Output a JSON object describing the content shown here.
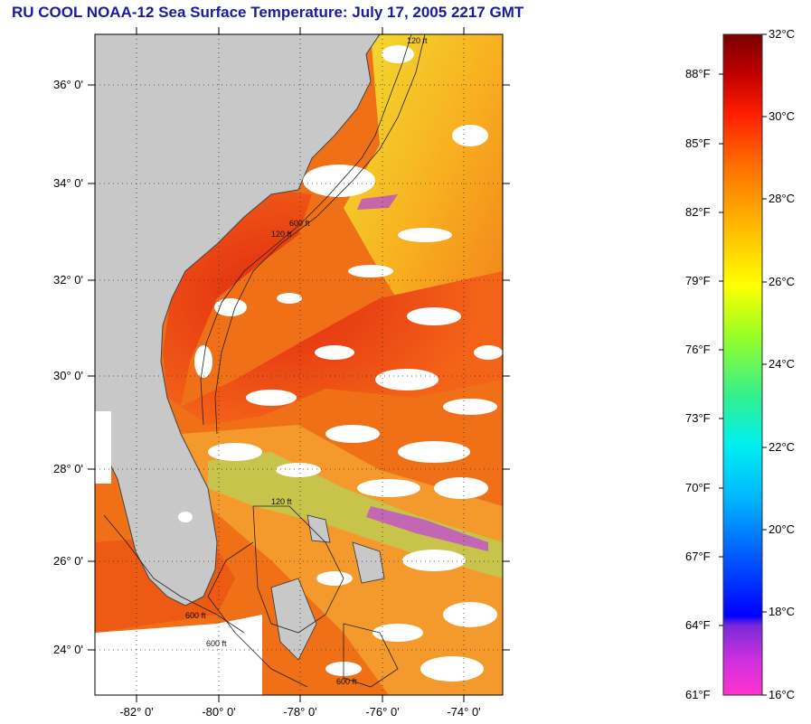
{
  "title": "RU COOL  NOAA-12  Sea Surface Temperature:  July 17, 2005 2217 GMT",
  "map": {
    "lat_ticks": [
      "36° 0'",
      "34° 0'",
      "32° 0'",
      "30° 0'",
      "28° 0'",
      "26° 0'",
      "24° 0'"
    ],
    "lon_ticks": [
      "-82° 0'",
      "-80° 0'",
      "-78° 0'",
      "-76° 0'",
      "-74° 0'"
    ],
    "contour_labels": [
      "120 ft",
      "120 ft",
      "600 ft",
      "120 ft",
      "600 ft",
      "600 ft",
      "600 ft"
    ],
    "colors": {
      "land": "#c8c8c8",
      "cloud": "#ffffff",
      "ocean_warm": "#e83a12",
      "ocean_mid": "#f7a020"
    }
  },
  "colorbar": {
    "celsius_labels": [
      "32°C",
      "30°C",
      "28°C",
      "26°C",
      "24°C",
      "22°C",
      "20°C",
      "18°C",
      "16°C"
    ],
    "fahrenheit_labels": [
      "88°F",
      "85°F",
      "82°F",
      "79°F",
      "76°F",
      "73°F",
      "70°F",
      "67°F",
      "64°F",
      "61°F"
    ],
    "range_celsius": [
      16,
      32
    ],
    "stops": [
      "#ff33cc",
      "#9a22e0",
      "#0000ff",
      "#0078ff",
      "#00e8ff",
      "#20f090",
      "#90ff20",
      "#ffff00",
      "#ffb000",
      "#ff7000",
      "#ff2200",
      "#d00000",
      "#800000"
    ]
  }
}
